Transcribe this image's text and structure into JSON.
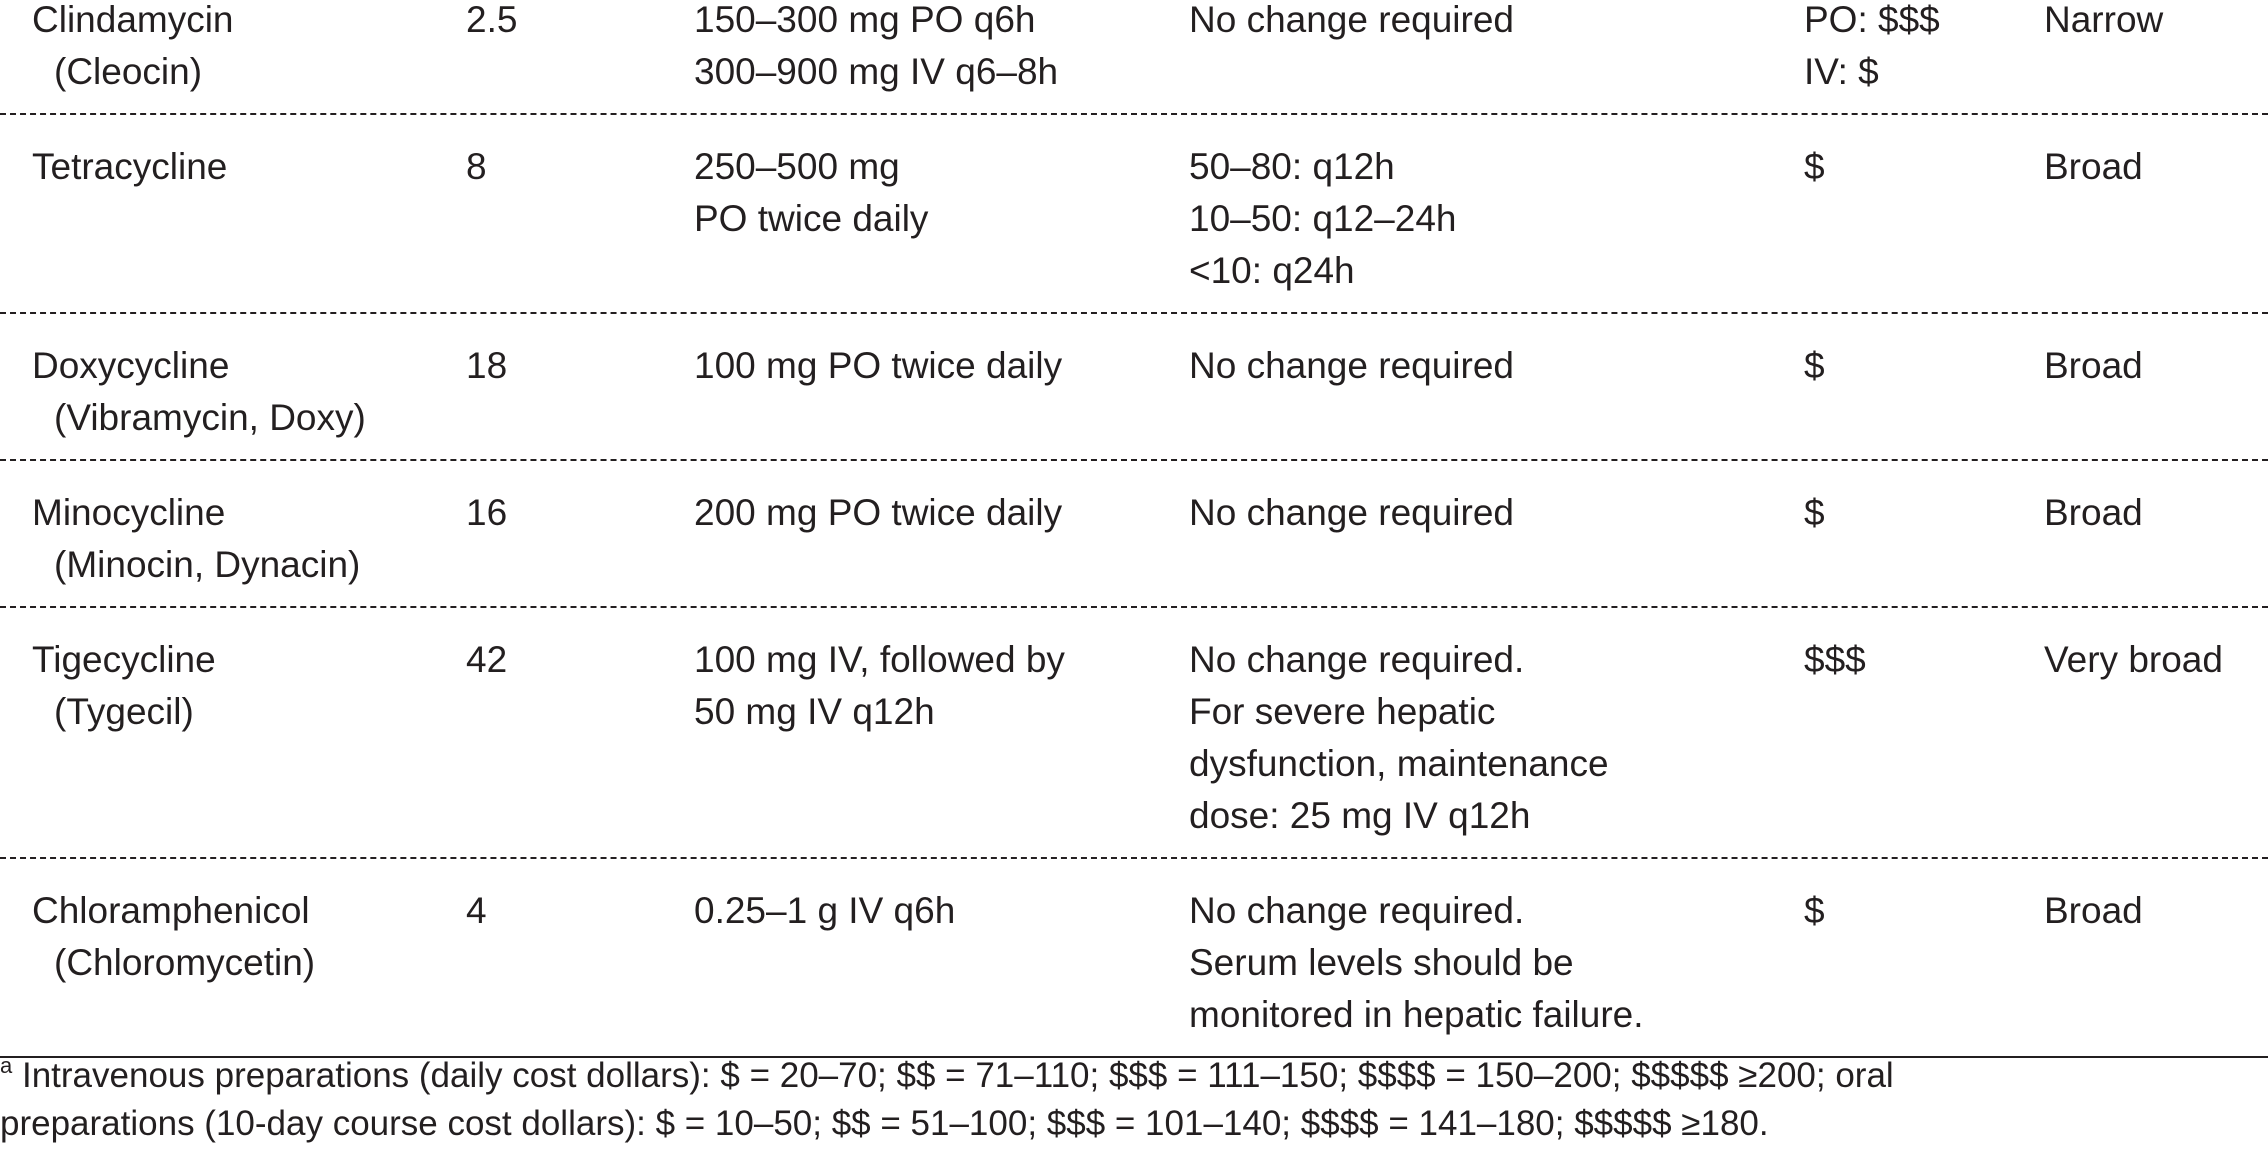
{
  "table": {
    "rows": [
      [
        [
          "Clindamycin",
          "(Cleocin)"
        ],
        [
          "2.5"
        ],
        [
          "150–300 mg PO q6h",
          "300–900 mg IV q6–8h"
        ],
        [
          "No change required"
        ],
        [
          "PO: $$$",
          "IV: $"
        ],
        [
          "Narrow"
        ]
      ],
      [
        [
          "Tetracycline"
        ],
        [
          "8"
        ],
        [
          "250–500 mg",
          "PO twice daily"
        ],
        [
          "50–80: q12h",
          "10–50: q12–24h",
          "<10: q24h"
        ],
        [
          "$"
        ],
        [
          "Broad"
        ]
      ],
      [
        [
          "Doxycycline",
          "(Vibramycin, Doxy)"
        ],
        [
          "18"
        ],
        [
          "100 mg PO twice daily"
        ],
        [
          "No change required"
        ],
        [
          "$"
        ],
        [
          "Broad"
        ]
      ],
      [
        [
          "Minocycline",
          "(Minocin, Dynacin)"
        ],
        [
          "16"
        ],
        [
          "200 mg PO twice daily"
        ],
        [
          "No change required"
        ],
        [
          "$"
        ],
        [
          "Broad"
        ]
      ],
      [
        [
          "Tigecycline",
          "(Tygecil)"
        ],
        [
          "42"
        ],
        [
          "100 mg IV, followed by",
          "50 mg IV q12h"
        ],
        [
          "No change required.",
          "For severe hepatic",
          "dysfunction, maintenance",
          "dose: 25 mg IV q12h"
        ],
        [
          "$$$"
        ],
        [
          "Very broad"
        ]
      ],
      [
        [
          "Chloramphenicol",
          "(Chloromycetin)"
        ],
        [
          "4"
        ],
        [
          "0.25–1 g IV q6h"
        ],
        [
          "No change required.",
          "Serum levels should be",
          "monitored in hepatic failure."
        ],
        [
          "$"
        ],
        [
          "Broad"
        ]
      ]
    ]
  },
  "footnote": {
    "marker": "a",
    "lines": [
      "Intravenous preparations (daily cost dollars): $ = 20–70; $$ = 71–110; $$$ = 111–150; $$$$ = 150–200; $$$$$ ≥200; oral",
      "preparations (10-day course cost dollars): $ = 10–50; $$ = 51–100; $$$ = 101–140; $$$$ = 141–180; $$$$$ ≥180."
    ]
  }
}
